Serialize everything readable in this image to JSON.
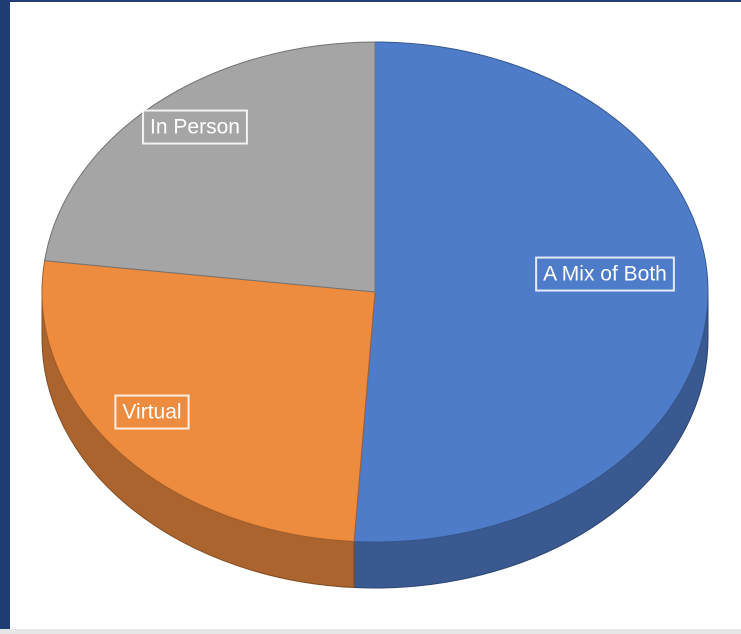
{
  "chart_data": {
    "type": "pie3d",
    "categories": [
      "A Mix of Both",
      "Virtual",
      "In Person"
    ],
    "values": [
      51,
      26,
      23
    ],
    "colors": [
      "#4f7cc8",
      "#ed8b3f",
      "#a5a5a5"
    ]
  }
}
